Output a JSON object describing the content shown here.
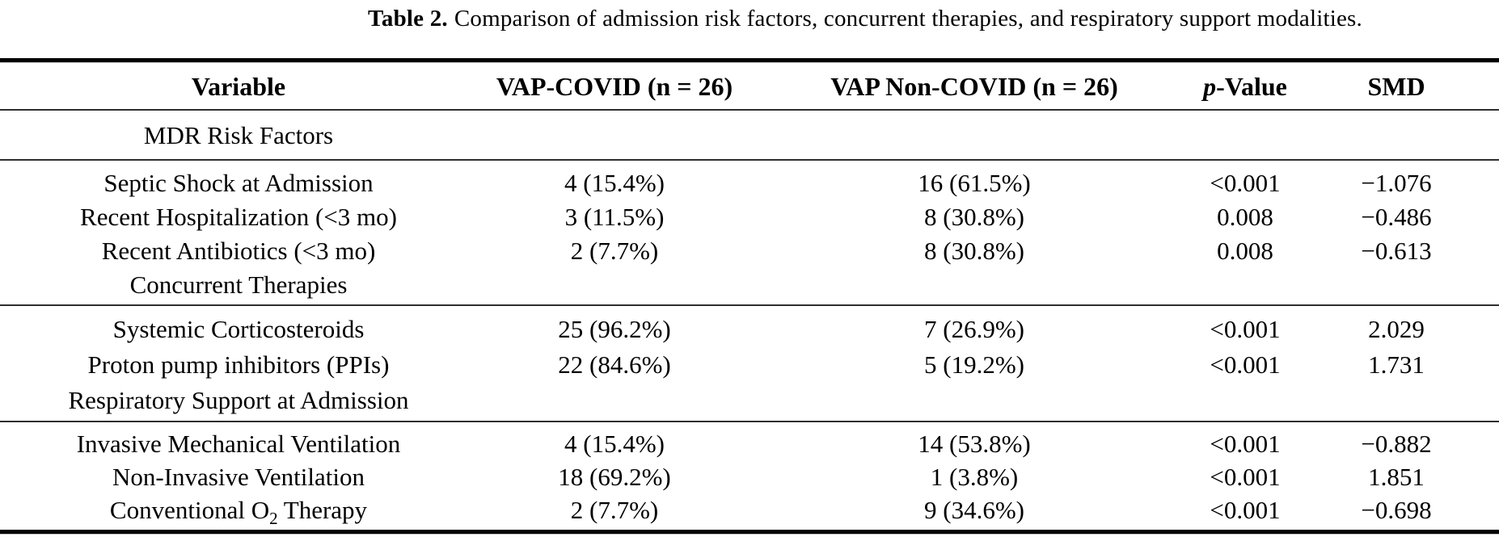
{
  "caption": {
    "label": "Table 2.",
    "text": "Comparison of admission risk factors, concurrent therapies, and respiratory support modalities."
  },
  "table": {
    "header": {
      "variable": "Variable",
      "vap_covid": "VAP-COVID (n = 26)",
      "vap_non_covid": "VAP Non-COVID (n = 26)",
      "p_value_italic": "p",
      "p_value_rest": "-Value",
      "smd": "SMD"
    },
    "sections": [
      {
        "title": "MDR Risk Factors",
        "rows": [
          {
            "variable": "Septic Shock at Admission",
            "vap_covid": "4 (15.4%)",
            "vap_non_covid": "16 (61.5%)",
            "p_value": "<0.001",
            "smd": "−1.076"
          },
          {
            "variable": "Recent Hospitalization (<3 mo)",
            "vap_covid": "3 (11.5%)",
            "vap_non_covid": "8 (30.8%)",
            "p_value": "0.008",
            "smd": "−0.486"
          },
          {
            "variable": "Recent Antibiotics (<3 mo)",
            "vap_covid": "2 (7.7%)",
            "vap_non_covid": "8 (30.8%)",
            "p_value": "0.008",
            "smd": "−0.613"
          }
        ]
      },
      {
        "title": "Concurrent Therapies",
        "rows": [
          {
            "variable": "Systemic Corticosteroids",
            "vap_covid": "25 (96.2%)",
            "vap_non_covid": "7 (26.9%)",
            "p_value": "<0.001",
            "smd": "2.029"
          },
          {
            "variable": "Proton pump inhibitors (PPIs)",
            "vap_covid": "22 (84.6%)",
            "vap_non_covid": "5 (19.2%)",
            "p_value": "<0.001",
            "smd": "1.731"
          }
        ]
      },
      {
        "title": "Respiratory Support at Admission",
        "rows": [
          {
            "variable": "Invasive Mechanical Ventilation",
            "vap_covid": "4 (15.4%)",
            "vap_non_covid": "14 (53.8%)",
            "p_value": "<0.001",
            "smd": "−0.882"
          },
          {
            "variable": "Non-Invasive Ventilation",
            "vap_covid": "18 (69.2%)",
            "vap_non_covid": "1 (3.8%)",
            "p_value": "<0.001",
            "smd": "1.851"
          },
          {
            "variable_pre": "Conventional O",
            "variable_sub": "2",
            "variable_post": " Therapy",
            "vap_covid": "2 (7.7%)",
            "vap_non_covid": "9 (34.6%)",
            "p_value": "<0.001",
            "smd": "−0.698"
          }
        ]
      }
    ]
  }
}
